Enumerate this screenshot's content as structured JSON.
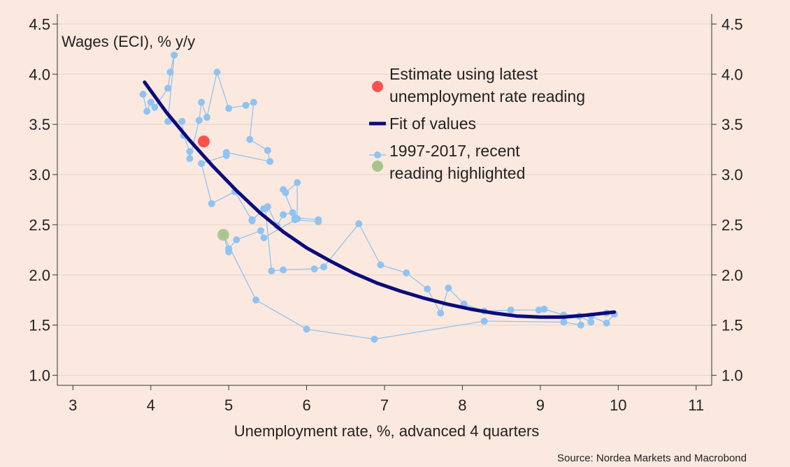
{
  "chart_data": {
    "type": "scatter",
    "ylabel": "Wages (ECI), % y/y",
    "xlabel": "Unemployment rate, %, advanced 4 quarters",
    "source": "Source: Nordea Markets and Macrobond",
    "xlim": [
      2.8,
      11.2
    ],
    "ylim": [
      0.9,
      4.6
    ],
    "x_ticks": [
      "3",
      "4",
      "5",
      "6",
      "7",
      "8",
      "9",
      "10",
      "11"
    ],
    "y_ticks": [
      "1.0",
      "1.5",
      "2.0",
      "2.5",
      "3.0",
      "3.5",
      "4.0",
      "4.5"
    ],
    "grid": true,
    "legend": [
      {
        "key": "estimate",
        "label_lines": [
          "Estimate using latest",
          "unemployment rate reading"
        ]
      },
      {
        "key": "fit",
        "label_lines": [
          "Fit of values"
        ]
      },
      {
        "key": "history",
        "label_lines": [
          "1997-2017, recent",
          "reading highlighted"
        ]
      }
    ],
    "colors": {
      "history": "#8fc3f2",
      "fit": "#0b0b7a",
      "estimate": "#ff5050",
      "recent": "#a8c48a",
      "grid": "#e8d8ce",
      "axis": "#333333"
    },
    "series": [
      {
        "name": "1997-2017, recent reading highlighted",
        "kind": "connected-scatter",
        "points": [
          [
            3.9,
            3.8
          ],
          [
            3.95,
            3.63
          ],
          [
            4.0,
            3.72
          ],
          [
            4.05,
            3.67
          ],
          [
            4.22,
            3.86
          ],
          [
            4.25,
            4.02
          ],
          [
            4.3,
            4.19
          ],
          [
            4.22,
            3.53
          ],
          [
            4.4,
            3.53
          ],
          [
            4.42,
            3.39
          ],
          [
            4.5,
            3.23
          ],
          [
            4.5,
            3.16
          ],
          [
            4.62,
            3.54
          ],
          [
            4.65,
            3.72
          ],
          [
            4.72,
            3.57
          ],
          [
            4.85,
            4.02
          ],
          [
            5.0,
            3.66
          ],
          [
            5.22,
            3.69
          ],
          [
            5.32,
            3.72
          ],
          [
            5.27,
            3.35
          ],
          [
            5.5,
            3.24
          ],
          [
            5.53,
            3.13
          ],
          [
            4.97,
            3.22
          ],
          [
            4.97,
            3.19
          ],
          [
            4.65,
            3.11
          ],
          [
            4.78,
            2.71
          ],
          [
            5.08,
            2.83
          ],
          [
            5.3,
            2.54
          ],
          [
            5.45,
            2.66
          ],
          [
            5.5,
            2.68
          ],
          [
            5.62,
            2.49
          ],
          [
            5.7,
            2.6
          ],
          [
            5.82,
            2.62
          ],
          [
            5.85,
            2.55
          ],
          [
            6.15,
            2.53
          ],
          [
            6.15,
            2.55
          ],
          [
            5.85,
            2.57
          ],
          [
            5.7,
            2.85
          ],
          [
            5.73,
            2.82
          ],
          [
            5.88,
            2.92
          ],
          [
            5.88,
            2.56
          ],
          [
            5.45,
            2.37
          ],
          [
            5.41,
            2.44
          ],
          [
            5.1,
            2.35
          ],
          [
            5.0,
            2.26
          ],
          [
            5.0,
            2.23
          ],
          [
            4.93,
            2.4
          ],
          [
            5.35,
            1.75
          ],
          [
            6.0,
            1.46
          ],
          [
            6.87,
            1.36
          ],
          [
            8.28,
            1.54
          ],
          [
            9.3,
            1.53
          ],
          [
            9.52,
            1.5
          ],
          [
            9.5,
            1.59
          ],
          [
            9.65,
            1.53
          ],
          [
            9.65,
            1.59
          ],
          [
            9.85,
            1.52
          ],
          [
            9.95,
            1.61
          ],
          [
            9.85,
            1.62
          ],
          [
            9.3,
            1.6
          ],
          [
            9.05,
            1.66
          ],
          [
            8.98,
            1.65
          ],
          [
            8.62,
            1.65
          ],
          [
            8.28,
            1.64
          ],
          [
            8.02,
            1.71
          ],
          [
            7.82,
            1.87
          ],
          [
            7.72,
            1.62
          ],
          [
            7.55,
            1.86
          ],
          [
            7.28,
            2.02
          ],
          [
            6.95,
            2.1
          ],
          [
            6.67,
            2.51
          ],
          [
            6.22,
            2.08
          ],
          [
            6.1,
            2.06
          ],
          [
            5.7,
            2.05
          ],
          [
            5.55,
            2.04
          ],
          [
            5.47,
            2.66
          ],
          [
            5.3,
            2.55
          ]
        ]
      },
      {
        "name": "Fit of values",
        "kind": "line",
        "points": [
          [
            3.92,
            3.92
          ],
          [
            4.2,
            3.62
          ],
          [
            4.5,
            3.34
          ],
          [
            4.8,
            3.08
          ],
          [
            5.1,
            2.84
          ],
          [
            5.4,
            2.62
          ],
          [
            5.7,
            2.43
          ],
          [
            6.0,
            2.27
          ],
          [
            6.3,
            2.14
          ],
          [
            6.6,
            2.02
          ],
          [
            6.9,
            1.92
          ],
          [
            7.2,
            1.84
          ],
          [
            7.5,
            1.77
          ],
          [
            7.8,
            1.71
          ],
          [
            8.1,
            1.66
          ],
          [
            8.4,
            1.62
          ],
          [
            8.7,
            1.59
          ],
          [
            9.0,
            1.58
          ],
          [
            9.3,
            1.58
          ],
          [
            9.6,
            1.6
          ],
          [
            9.95,
            1.63
          ]
        ]
      },
      {
        "name": "Estimate using latest unemployment rate reading",
        "kind": "point",
        "points": [
          [
            4.68,
            3.33
          ]
        ]
      },
      {
        "name": "Recent reading",
        "kind": "point",
        "points": [
          [
            4.93,
            2.4
          ]
        ]
      }
    ]
  }
}
